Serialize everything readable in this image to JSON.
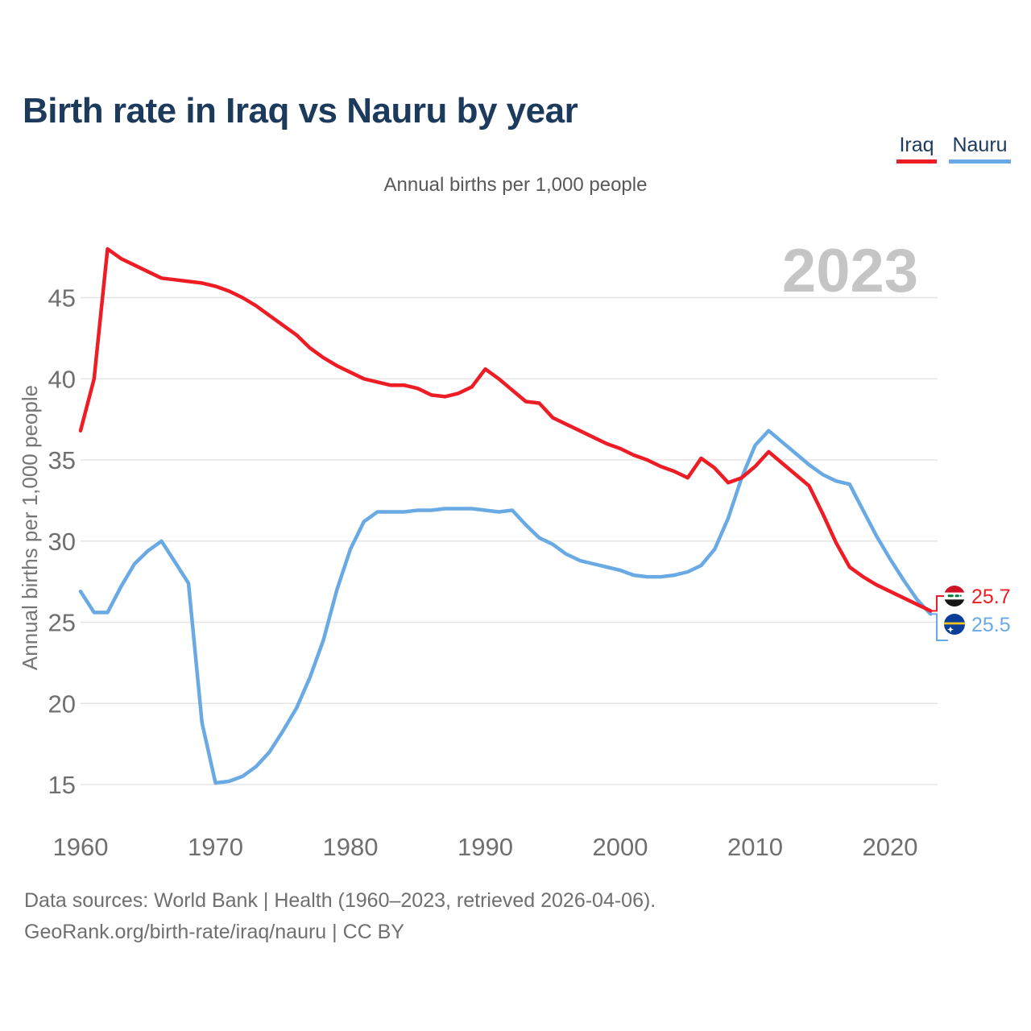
{
  "page": {
    "title": "Birth rate in Iraq vs Nauru by year",
    "subtitle": "Annual births per 1,000 people",
    "watermark": "2023"
  },
  "legend": {
    "items": [
      {
        "label": "Iraq",
        "color": "#ee1c24"
      },
      {
        "label": "Nauru",
        "color": "#6aaae4"
      }
    ]
  },
  "chart_data": {
    "type": "line",
    "title": "Birth rate in Iraq vs Nauru by year",
    "subtitle": "Annual births per 1,000 people",
    "xlabel": "",
    "ylabel": "Annual births per 1,000 people",
    "grid": "horizontal",
    "legend_position": "top-right",
    "xticks": [
      1960,
      1970,
      1980,
      1990,
      2000,
      2010,
      2020
    ],
    "yticks": [
      15,
      20,
      25,
      30,
      35,
      40,
      45
    ],
    "ylim": [
      13.3,
      49.3
    ],
    "xlim": [
      1960,
      2023
    ],
    "x": [
      1960,
      1961,
      1962,
      1963,
      1964,
      1965,
      1966,
      1967,
      1968,
      1969,
      1970,
      1971,
      1972,
      1973,
      1974,
      1975,
      1976,
      1977,
      1978,
      1979,
      1980,
      1981,
      1982,
      1983,
      1984,
      1985,
      1986,
      1987,
      1988,
      1989,
      1990,
      1991,
      1992,
      1993,
      1994,
      1995,
      1996,
      1997,
      1998,
      1999,
      2000,
      2001,
      2002,
      2003,
      2004,
      2005,
      2006,
      2007,
      2008,
      2009,
      2010,
      2011,
      2012,
      2013,
      2014,
      2015,
      2016,
      2017,
      2018,
      2019,
      2020,
      2021,
      2022,
      2023
    ],
    "series": [
      {
        "name": "Iraq",
        "color": "#ee1c24",
        "values": [
          36.8,
          40.0,
          48.0,
          47.4,
          47.0,
          46.6,
          46.2,
          46.1,
          46.0,
          45.9,
          45.7,
          45.4,
          45.0,
          44.5,
          43.9,
          43.3,
          42.7,
          41.9,
          41.3,
          40.8,
          40.4,
          40.0,
          39.8,
          39.6,
          39.6,
          39.4,
          39.0,
          38.9,
          39.1,
          39.5,
          40.6,
          40.0,
          39.3,
          38.6,
          38.5,
          37.6,
          37.2,
          36.8,
          36.4,
          36.0,
          35.7,
          35.3,
          35.0,
          34.6,
          34.3,
          33.9,
          35.1,
          34.5,
          33.6,
          33.9,
          34.6,
          35.5,
          34.8,
          34.1,
          33.4,
          31.7,
          29.9,
          28.4,
          27.8,
          27.3,
          26.9,
          26.5,
          26.1,
          25.7
        ]
      },
      {
        "name": "Nauru",
        "color": "#6aaae4",
        "values": [
          26.9,
          25.6,
          25.6,
          27.2,
          28.6,
          29.4,
          30.0,
          28.7,
          27.4,
          18.8,
          15.1,
          15.2,
          15.5,
          16.1,
          17.0,
          18.3,
          19.7,
          21.6,
          23.9,
          27.0,
          29.5,
          31.2,
          31.8,
          31.8,
          31.8,
          31.9,
          31.9,
          32.0,
          32.0,
          32.0,
          31.9,
          31.8,
          31.9,
          31.0,
          30.2,
          29.8,
          29.2,
          28.8,
          28.6,
          28.4,
          28.2,
          27.9,
          27.8,
          27.8,
          27.9,
          28.1,
          28.5,
          29.5,
          31.4,
          33.9,
          35.9,
          36.8,
          36.1,
          35.4,
          34.7,
          34.1,
          33.7,
          33.5,
          31.9,
          30.3,
          28.9,
          27.6,
          26.4,
          25.5
        ]
      }
    ],
    "end_labels": [
      {
        "series": "Iraq",
        "value": "25.7",
        "flag": "iraq-flag"
      },
      {
        "series": "Nauru",
        "value": "25.5",
        "flag": "nauru-flag"
      }
    ]
  },
  "footer": {
    "line1": "Data sources: World Bank | Health (1960–2023, retrieved 2026-04-06).",
    "line2": "GeoRank.org/birth-rate/iraq/nauru | CC BY"
  },
  "colors": {
    "title": "#1c3a5c",
    "iraq": "#ee1c24",
    "nauru": "#6aaae4",
    "axis_text": "#6f6f6f",
    "gridline": "#e5e5e5",
    "watermark": "#c5c5c5",
    "footer_text": "#6f6f6f"
  }
}
